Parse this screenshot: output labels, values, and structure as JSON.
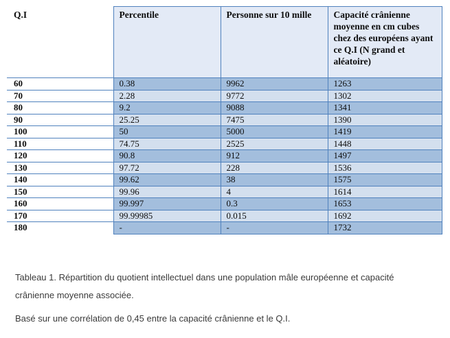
{
  "document": {
    "table": {
      "headers": [
        "Q.I",
        "Percentile",
        "Personne sur 10 mille",
        "Capacité crânienne moyenne en cm cubes chez des européens ayant ce Q.I (N grand et aléatoire)"
      ],
      "rows": [
        [
          "60",
          "0.38",
          "9962",
          "1263"
        ],
        [
          "70",
          "2.28",
          "9772",
          "1302"
        ],
        [
          "80",
          "9.2",
          "9088",
          "1341"
        ],
        [
          "90",
          "25.25",
          "7475",
          "1390"
        ],
        [
          "100",
          "50",
          "5000",
          "1419"
        ],
        [
          "110",
          "74.75",
          "2525",
          "1448"
        ],
        [
          "120",
          "90.8",
          "912",
          "1497"
        ],
        [
          "130",
          "97.72",
          "228",
          "1536"
        ],
        [
          "140",
          "99.62",
          "38",
          "1575"
        ],
        [
          "150",
          "99.96",
          "4",
          "1614"
        ],
        [
          "160",
          "99.997",
          "0.3",
          "1653"
        ],
        [
          "170",
          "99.99985",
          "0.015",
          "1692"
        ],
        [
          "180",
          "-",
          "-",
          "1732"
        ]
      ]
    },
    "caption": "Tableau 1. Répartition du quotient intellectuel dans une population mâle européenne et capacité crânienne moyenne associée.",
    "note": "Basé sur une corrélation de 0,45 entre la capacité crânienne et le Q.I."
  },
  "colors": {
    "border": "#4F81BD",
    "band_dark": "#A3BEDD",
    "band_light": "#D3DFEE",
    "header_fill": "#E3EAF6"
  }
}
